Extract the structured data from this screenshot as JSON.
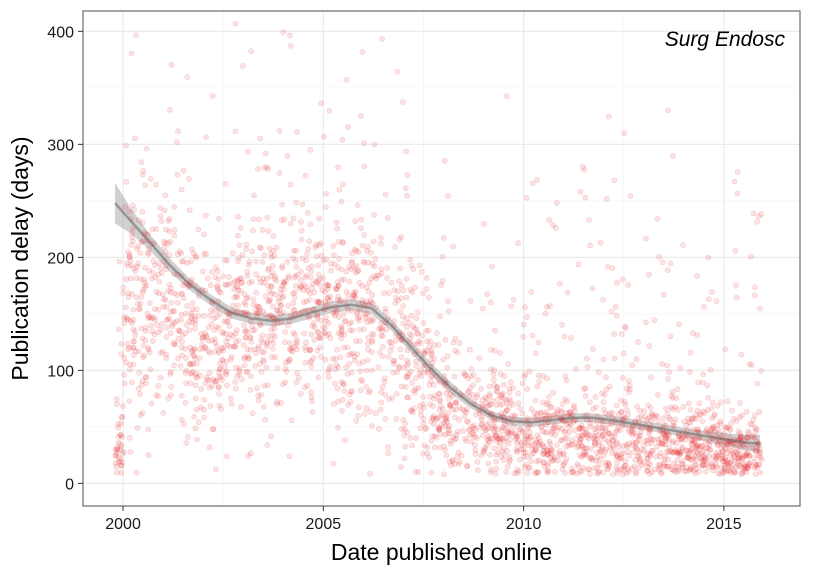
{
  "chart_data": {
    "type": "scatter",
    "annotation": "Surg Endosc",
    "xlabel": "Date published online",
    "ylabel": "Publication delay (days)",
    "xlim": [
      1999.0,
      2016.9
    ],
    "ylim": [
      -20,
      418
    ],
    "x_ticks": [
      2000,
      2005,
      2010,
      2015
    ],
    "x_tick_labels": [
      "2000",
      "2005",
      "2010",
      "2015"
    ],
    "y_ticks": [
      0,
      100,
      200,
      300,
      400
    ],
    "y_tick_labels": [
      "0",
      "100",
      "200",
      "300",
      "400"
    ],
    "grid": true,
    "point_color": "#e31a1c",
    "point_alpha": 0.12,
    "smooth_color": "#666666",
    "band_color": "#999999",
    "density_profile": [
      {
        "x": 2000.0,
        "median": 140,
        "spread": 70
      },
      {
        "x": 2001.0,
        "median": 160,
        "spread": 75
      },
      {
        "x": 2002.0,
        "median": 120,
        "spread": 55
      },
      {
        "x": 2003.0,
        "median": 140,
        "spread": 55
      },
      {
        "x": 2004.0,
        "median": 145,
        "spread": 50
      },
      {
        "x": 2005.0,
        "median": 145,
        "spread": 50
      },
      {
        "x": 2006.0,
        "median": 140,
        "spread": 55
      },
      {
        "x": 2007.0,
        "median": 110,
        "spread": 55
      },
      {
        "x": 2008.0,
        "median": 65,
        "spread": 40
      },
      {
        "x": 2009.0,
        "median": 50,
        "spread": 32
      },
      {
        "x": 2010.0,
        "median": 45,
        "spread": 30
      },
      {
        "x": 2011.0,
        "median": 40,
        "spread": 28
      },
      {
        "x": 2012.0,
        "median": 38,
        "spread": 26
      },
      {
        "x": 2013.0,
        "median": 35,
        "spread": 25
      },
      {
        "x": 2014.0,
        "median": 32,
        "spread": 24
      },
      {
        "x": 2015.0,
        "median": 28,
        "spread": 22
      },
      {
        "x": 2015.9,
        "median": 28,
        "spread": 22
      }
    ],
    "smooth": [
      {
        "x": 1999.8,
        "y": 248,
        "se": 18
      },
      {
        "x": 2000.2,
        "y": 232,
        "se": 11
      },
      {
        "x": 2000.7,
        "y": 212,
        "se": 7
      },
      {
        "x": 2001.2,
        "y": 192,
        "se": 6
      },
      {
        "x": 2001.7,
        "y": 175,
        "se": 5
      },
      {
        "x": 2002.2,
        "y": 162,
        "se": 5
      },
      {
        "x": 2002.7,
        "y": 151,
        "se": 5
      },
      {
        "x": 2003.2,
        "y": 146,
        "se": 5
      },
      {
        "x": 2003.7,
        "y": 144,
        "se": 5
      },
      {
        "x": 2004.2,
        "y": 146,
        "se": 5
      },
      {
        "x": 2004.7,
        "y": 151,
        "se": 5
      },
      {
        "x": 2005.2,
        "y": 156,
        "se": 5
      },
      {
        "x": 2005.7,
        "y": 158,
        "se": 5
      },
      {
        "x": 2006.2,
        "y": 155,
        "se": 5
      },
      {
        "x": 2006.7,
        "y": 140,
        "se": 5
      },
      {
        "x": 2007.2,
        "y": 120,
        "se": 5
      },
      {
        "x": 2007.7,
        "y": 101,
        "se": 5
      },
      {
        "x": 2008.2,
        "y": 84,
        "se": 5
      },
      {
        "x": 2008.7,
        "y": 70,
        "se": 4
      },
      {
        "x": 2009.2,
        "y": 60,
        "se": 4
      },
      {
        "x": 2009.7,
        "y": 55,
        "se": 4
      },
      {
        "x": 2010.2,
        "y": 54,
        "se": 4
      },
      {
        "x": 2010.7,
        "y": 56,
        "se": 4
      },
      {
        "x": 2011.2,
        "y": 58,
        "se": 4
      },
      {
        "x": 2011.7,
        "y": 58,
        "se": 4
      },
      {
        "x": 2012.2,
        "y": 56,
        "se": 4
      },
      {
        "x": 2012.7,
        "y": 53,
        "se": 4
      },
      {
        "x": 2013.2,
        "y": 50,
        "se": 4
      },
      {
        "x": 2013.7,
        "y": 47,
        "se": 4
      },
      {
        "x": 2014.2,
        "y": 44,
        "se": 4
      },
      {
        "x": 2014.7,
        "y": 41,
        "se": 5
      },
      {
        "x": 2015.2,
        "y": 38,
        "se": 6
      },
      {
        "x": 2015.6,
        "y": 36,
        "se": 7
      },
      {
        "x": 2015.9,
        "y": 35,
        "se": 8
      }
    ]
  }
}
